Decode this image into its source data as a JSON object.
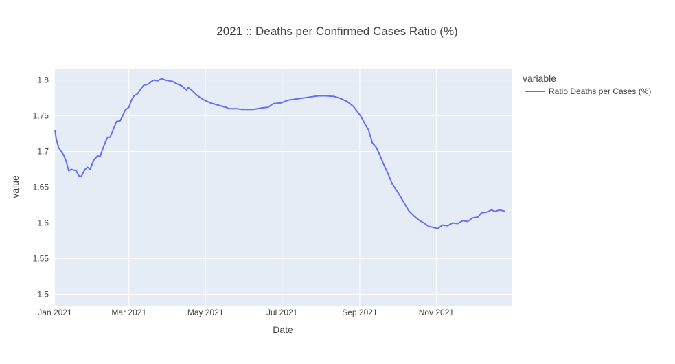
{
  "chart_data": {
    "type": "line",
    "title": "2021 :: Deaths per Confirmed Cases Ratio (%)",
    "xlabel": "Date",
    "ylabel": "value",
    "x_range": [
      "2021-01-01",
      "2021-12-31"
    ],
    "ylim": [
      1.484,
      1.816
    ],
    "x_ticks": [
      {
        "date": "2021-01-01",
        "label": "Jan 2021"
      },
      {
        "date": "2021-03-01",
        "label": "Mar 2021"
      },
      {
        "date": "2021-05-01",
        "label": "May 2021"
      },
      {
        "date": "2021-07-01",
        "label": "Jul 2021"
      },
      {
        "date": "2021-09-01",
        "label": "Sep 2021"
      },
      {
        "date": "2021-11-01",
        "label": "Nov 2021"
      }
    ],
    "y_ticks": [
      {
        "value": 1.5,
        "label": "1.5"
      },
      {
        "value": 1.55,
        "label": "1.55"
      },
      {
        "value": 1.6,
        "label": "1.6"
      },
      {
        "value": 1.65,
        "label": "1.65"
      },
      {
        "value": 1.7,
        "label": "1.7"
      },
      {
        "value": 1.75,
        "label": "1.75"
      },
      {
        "value": 1.8,
        "label": "1.8"
      }
    ],
    "grid": true,
    "plot_background": "#e5ecf6",
    "legend": {
      "title": "variable",
      "placement": "right"
    },
    "series": [
      {
        "name": "Ratio Deaths per Cases (%)",
        "color": "#636efa",
        "points": [
          [
            "2021-01-01",
            1.73
          ],
          [
            "2021-01-02",
            1.718
          ],
          [
            "2021-01-04",
            1.705
          ],
          [
            "2021-01-06",
            1.7
          ],
          [
            "2021-01-08",
            1.695
          ],
          [
            "2021-01-10",
            1.686
          ],
          [
            "2021-01-12",
            1.673
          ],
          [
            "2021-01-14",
            1.675
          ],
          [
            "2021-01-18",
            1.673
          ],
          [
            "2021-01-20",
            1.666
          ],
          [
            "2021-01-22",
            1.665
          ],
          [
            "2021-01-25",
            1.675
          ],
          [
            "2021-01-27",
            1.678
          ],
          [
            "2021-01-29",
            1.675
          ],
          [
            "2021-02-01",
            1.688
          ],
          [
            "2021-02-04",
            1.694
          ],
          [
            "2021-02-06",
            1.693
          ],
          [
            "2021-02-09",
            1.708
          ],
          [
            "2021-02-12",
            1.72
          ],
          [
            "2021-02-14",
            1.72
          ],
          [
            "2021-02-17",
            1.733
          ],
          [
            "2021-02-19",
            1.742
          ],
          [
            "2021-02-22",
            1.743
          ],
          [
            "2021-02-24",
            1.75
          ],
          [
            "2021-02-26",
            1.758
          ],
          [
            "2021-03-01",
            1.762
          ],
          [
            "2021-03-03",
            1.772
          ],
          [
            "2021-03-05",
            1.778
          ],
          [
            "2021-03-08",
            1.781
          ],
          [
            "2021-03-11",
            1.789
          ],
          [
            "2021-03-13",
            1.793
          ],
          [
            "2021-03-16",
            1.794
          ],
          [
            "2021-03-19",
            1.798
          ],
          [
            "2021-03-21",
            1.8
          ],
          [
            "2021-03-24",
            1.799
          ],
          [
            "2021-03-27",
            1.802
          ],
          [
            "2021-03-30",
            1.8
          ],
          [
            "2021-04-02",
            1.799
          ],
          [
            "2021-04-05",
            1.798
          ],
          [
            "2021-04-08",
            1.795
          ],
          [
            "2021-04-12",
            1.792
          ],
          [
            "2021-04-16",
            1.786
          ],
          [
            "2021-04-17",
            1.79
          ],
          [
            "2021-04-20",
            1.786
          ],
          [
            "2021-04-24",
            1.779
          ],
          [
            "2021-04-29",
            1.773
          ],
          [
            "2021-05-05",
            1.768
          ],
          [
            "2021-05-11",
            1.765
          ],
          [
            "2021-05-17",
            1.762
          ],
          [
            "2021-05-20",
            1.76
          ],
          [
            "2021-05-26",
            1.76
          ],
          [
            "2021-05-30",
            1.759
          ],
          [
            "2021-06-05",
            1.759
          ],
          [
            "2021-06-08",
            1.759
          ],
          [
            "2021-06-15",
            1.761
          ],
          [
            "2021-06-20",
            1.762
          ],
          [
            "2021-06-24",
            1.767
          ],
          [
            "2021-06-30",
            1.768
          ],
          [
            "2021-07-06",
            1.772
          ],
          [
            "2021-07-14",
            1.774
          ],
          [
            "2021-07-22",
            1.776
          ],
          [
            "2021-07-30",
            1.778
          ],
          [
            "2021-08-05",
            1.778
          ],
          [
            "2021-08-12",
            1.777
          ],
          [
            "2021-08-17",
            1.774
          ],
          [
            "2021-08-22",
            1.77
          ],
          [
            "2021-08-27",
            1.763
          ],
          [
            "2021-08-30",
            1.756
          ],
          [
            "2021-09-02",
            1.749
          ],
          [
            "2021-09-05",
            1.739
          ],
          [
            "2021-09-08",
            1.73
          ],
          [
            "2021-09-11",
            1.712
          ],
          [
            "2021-09-14",
            1.706
          ],
          [
            "2021-09-17",
            1.695
          ],
          [
            "2021-09-20",
            1.682
          ],
          [
            "2021-09-23",
            1.671
          ],
          [
            "2021-09-27",
            1.654
          ],
          [
            "2021-10-02",
            1.641
          ],
          [
            "2021-10-06",
            1.629
          ],
          [
            "2021-10-10",
            1.617
          ],
          [
            "2021-10-14",
            1.61
          ],
          [
            "2021-10-18",
            1.604
          ],
          [
            "2021-10-22",
            1.6
          ],
          [
            "2021-10-26",
            1.595
          ],
          [
            "2021-10-29",
            1.594
          ],
          [
            "2021-11-02",
            1.592
          ],
          [
            "2021-11-06",
            1.597
          ],
          [
            "2021-11-10",
            1.596
          ],
          [
            "2021-11-14",
            1.6
          ],
          [
            "2021-11-18",
            1.599
          ],
          [
            "2021-11-22",
            1.603
          ],
          [
            "2021-11-26",
            1.602
          ],
          [
            "2021-11-30",
            1.607
          ],
          [
            "2021-12-04",
            1.608
          ],
          [
            "2021-12-07",
            1.614
          ],
          [
            "2021-12-11",
            1.615
          ],
          [
            "2021-12-15",
            1.618
          ],
          [
            "2021-12-18",
            1.616
          ],
          [
            "2021-12-21",
            1.618
          ],
          [
            "2021-12-24",
            1.617
          ],
          [
            "2021-12-26",
            1.616
          ]
        ]
      }
    ]
  }
}
